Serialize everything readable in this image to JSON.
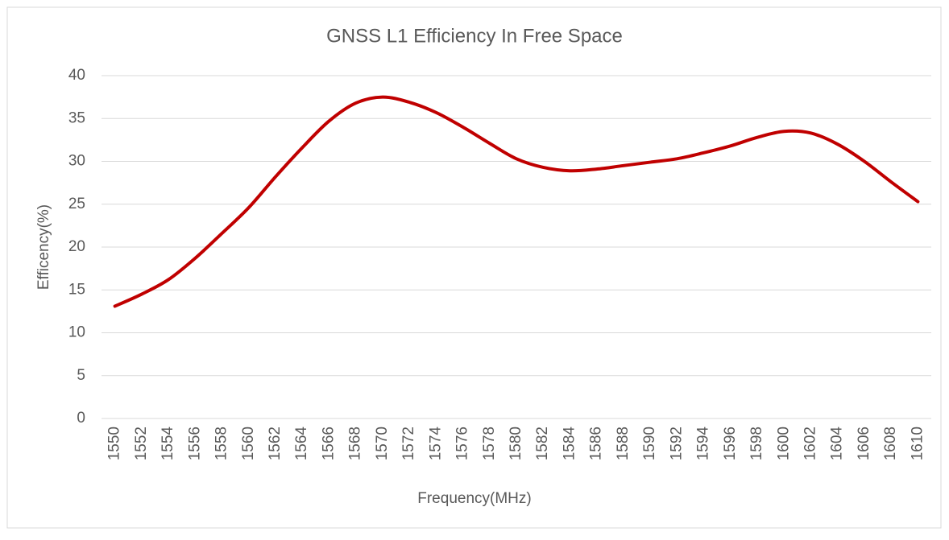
{
  "chart_data": {
    "type": "line",
    "title": "GNSS L1 Efficiency In Free Space",
    "x_label": "Frequency(MHz)",
    "y_label": "Efficency(%)",
    "categories": [
      1550,
      1552,
      1554,
      1556,
      1558,
      1560,
      1562,
      1564,
      1566,
      1568,
      1570,
      1572,
      1574,
      1576,
      1578,
      1580,
      1582,
      1584,
      1586,
      1588,
      1590,
      1592,
      1594,
      1596,
      1598,
      1600,
      1602,
      1604,
      1606,
      1608,
      1610
    ],
    "series": [
      {
        "color": "#c00000",
        "values": [
          13.1,
          14.5,
          16.2,
          18.7,
          21.6,
          24.6,
          28.2,
          31.6,
          34.7,
          36.8,
          37.5,
          36.9,
          35.7,
          34.0,
          32.1,
          30.3,
          29.3,
          28.9,
          29.1,
          29.5,
          29.9,
          30.3,
          31.0,
          31.8,
          32.8,
          33.5,
          33.3,
          32.0,
          30.0,
          27.6,
          25.3
        ]
      }
    ],
    "ylim": [
      0,
      40
    ],
    "yticks": [
      0,
      5,
      10,
      15,
      20,
      25,
      30,
      35,
      40
    ],
    "grid": true
  }
}
